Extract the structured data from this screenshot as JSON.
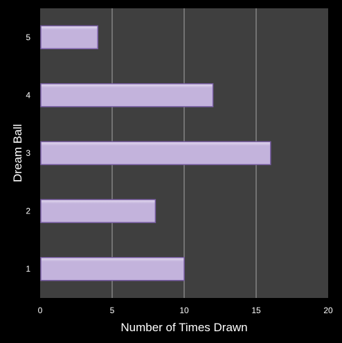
{
  "chart_data": {
    "type": "bar",
    "orientation": "horizontal",
    "categories": [
      "1",
      "2",
      "3",
      "4",
      "5"
    ],
    "values": [
      10,
      8,
      16,
      12,
      4
    ],
    "xlabel": "Number of Times Drawn",
    "ylabel": "Dream Ball",
    "xlim": [
      0,
      20
    ],
    "xticks": [
      "0",
      "5",
      "10",
      "15",
      "20"
    ],
    "grid": "vertical",
    "legend": "none"
  },
  "colors": {
    "background": "#000000",
    "plot_area": "#3f3f3f",
    "gridline": "#a6a6a6",
    "bar_fill": "#c3b3dc",
    "bar_highlight": "#e4dbf0",
    "bar_edge": "#7a5fa6",
    "text": "#ffffff"
  }
}
